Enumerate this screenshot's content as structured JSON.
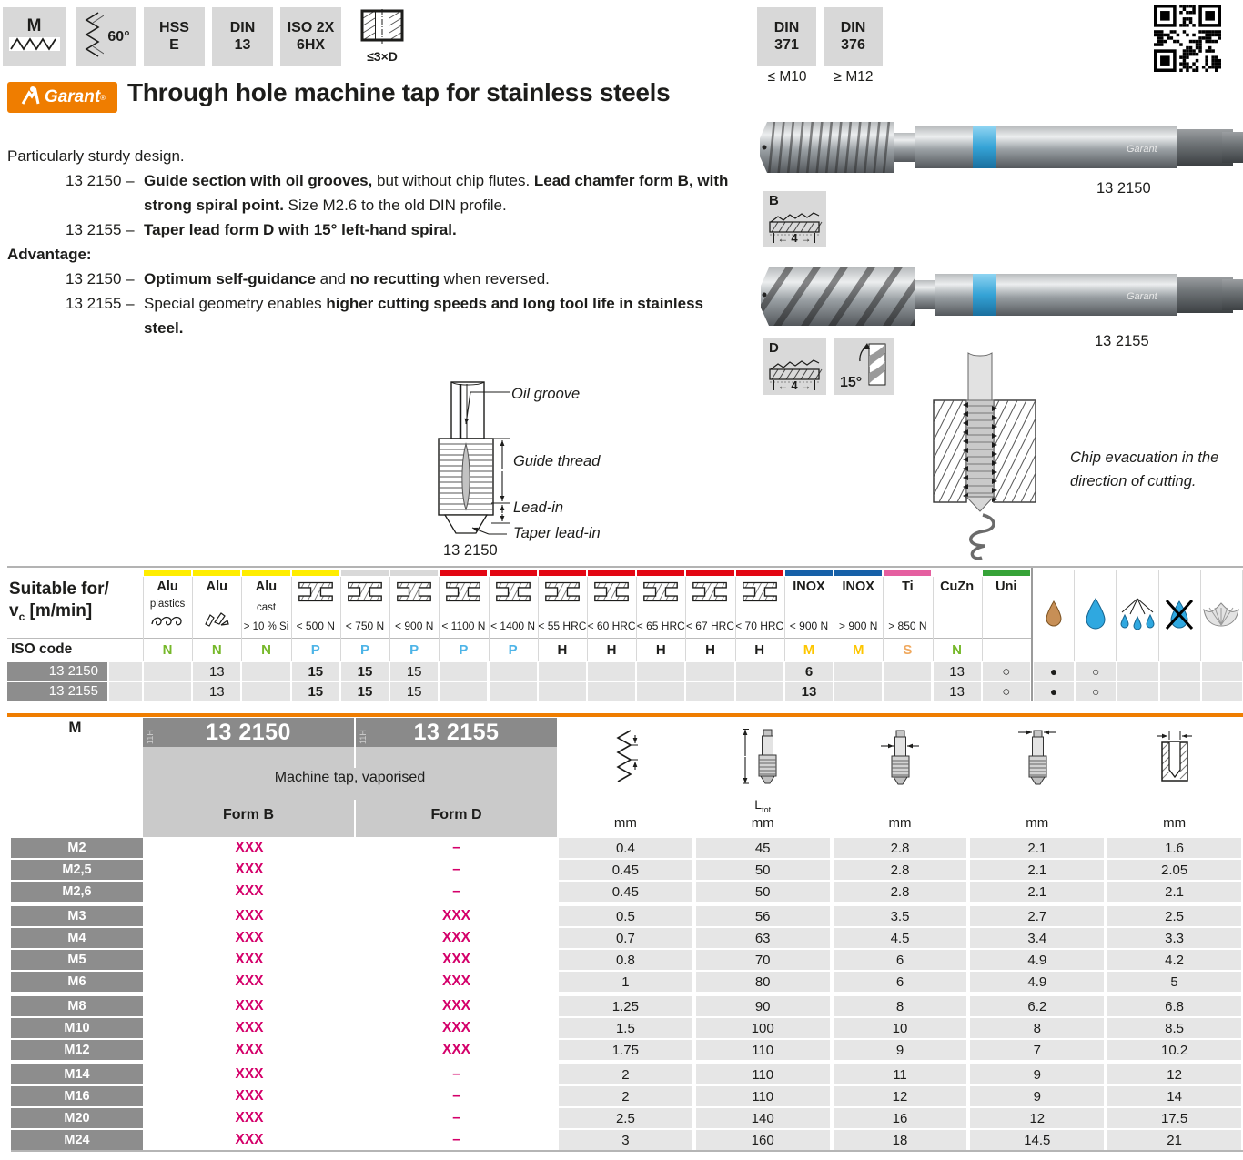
{
  "colors": {
    "accent_orange": "#ef7d00",
    "magenta": "#d4006a",
    "ring_blue": "#35a3d6"
  },
  "badge_strip": [
    {
      "icon": "thread-profile-m",
      "label": "M"
    },
    {
      "icon": "flank-angle",
      "label": "60°"
    },
    {
      "icon": "text",
      "lines": [
        "HSS",
        "E"
      ]
    },
    {
      "icon": "text",
      "lines": [
        "DIN",
        "13"
      ]
    },
    {
      "icon": "text",
      "lines": [
        "ISO 2X",
        "6HX"
      ]
    },
    {
      "icon": "through-hole",
      "label": "≤3×D"
    }
  ],
  "din_badges": [
    {
      "lines": [
        "DIN",
        "371"
      ],
      "range": "≤ M10"
    },
    {
      "lines": [
        "DIN",
        "376"
      ],
      "range": "≥ M12"
    }
  ],
  "brand": {
    "name": "Garant",
    "reg": "®"
  },
  "page_title": "Through hole machine tap for stainless steels",
  "intro": "Particularly sturdy design.",
  "features": [
    {
      "code": "13 2150 –",
      "segments": [
        [
          1,
          "Guide section with oil grooves,"
        ],
        [
          0,
          " but without chip flutes. "
        ],
        [
          1,
          "Lead chamfer form B, with strong spiral point."
        ],
        [
          0,
          " Size M2.6 to the old DIN profile."
        ]
      ]
    },
    {
      "code": "13 2155 –",
      "segments": [
        [
          1,
          "Taper lead form D with 15° left-hand spiral."
        ]
      ]
    }
  ],
  "advantage_heading": "Advantage:",
  "advantages": [
    {
      "code": "13 2150 –",
      "segments": [
        [
          1,
          "Optimum self-guidance"
        ],
        [
          0,
          " and "
        ],
        [
          1,
          "no recutting"
        ],
        [
          0,
          " when reversed."
        ]
      ]
    },
    {
      "code": "13 2155 –",
      "segments": [
        [
          0,
          "Special geometry enables "
        ],
        [
          1,
          "higher cutting speeds and long tool life in stainless steel."
        ]
      ]
    }
  ],
  "products": [
    {
      "label": "13 2150",
      "chamfer_form": "B",
      "chamfer_length": "4"
    },
    {
      "label": "13 2155",
      "chamfer_form": "D",
      "chamfer_length": "4",
      "spiral_angle": "15°"
    }
  ],
  "drawing": {
    "labels": [
      "Oil groove",
      "Guide thread",
      "Lead-in",
      "Taper lead-in"
    ],
    "caption": "13 2150"
  },
  "chip_note": [
    "Chip evacuation in the",
    "direction of cutting."
  ],
  "suitability": {
    "corner": {
      "line1": "Suitable for/",
      "symbol": "v",
      "symbol_sub": "c",
      "unit": " [m/min]"
    },
    "iso_label": "ISO code",
    "row_labels": [
      "13 2150",
      "13 2155"
    ],
    "columns": [
      {
        "strip": "#ffed00",
        "iso": "N",
        "iso_color": "#76b82a",
        "icon": "swirl",
        "t1": "Alu",
        "t2": "plastics",
        "values": [
          "",
          ""
        ]
      },
      {
        "strip": "#ffed00",
        "iso": "N",
        "iso_color": "#76b82a",
        "icon": "chips",
        "t1": "Alu",
        "values": [
          "13",
          "13"
        ]
      },
      {
        "strip": "#ffed00",
        "iso": "N",
        "iso_color": "#76b82a",
        "t1": "Alu",
        "t2": "cast",
        "t3": "> 10 % Si",
        "values": [
          "",
          ""
        ]
      },
      {
        "strip": "#ffed00",
        "iso": "P",
        "iso_color": "#4db4e7",
        "icon": "ibeam",
        "t2": "< 500 N",
        "values": [
          "15",
          "15"
        ],
        "bold": [
          true,
          true
        ]
      },
      {
        "strip": "#d9d9d9",
        "iso": "P",
        "iso_color": "#4db4e7",
        "icon": "ibeam",
        "t2": "< 750 N",
        "values": [
          "15",
          "15"
        ],
        "bold": [
          true,
          true
        ]
      },
      {
        "strip": "#d9d9d9",
        "iso": "P",
        "iso_color": "#4db4e7",
        "icon": "ibeam",
        "t2": "< 900 N",
        "values": [
          "15",
          "15"
        ]
      },
      {
        "strip": "#e30613",
        "iso": "P",
        "iso_color": "#4db4e7",
        "icon": "ibeam",
        "t2": "< 1100 N",
        "values": [
          "",
          ""
        ]
      },
      {
        "strip": "#e30613",
        "iso": "P",
        "iso_color": "#4db4e7",
        "icon": "ibeam",
        "t2": "< 1400 N",
        "values": [
          "",
          ""
        ]
      },
      {
        "strip": "#e30613",
        "iso": "H",
        "iso_color": "#1d1d1b",
        "icon": "ibeam",
        "t2": "< 55 HRC",
        "values": [
          "",
          ""
        ]
      },
      {
        "strip": "#e30613",
        "iso": "H",
        "iso_color": "#1d1d1b",
        "icon": "ibeam",
        "t2": "< 60 HRC",
        "values": [
          "",
          ""
        ]
      },
      {
        "strip": "#e30613",
        "iso": "H",
        "iso_color": "#1d1d1b",
        "icon": "ibeam",
        "t2": "< 65 HRC",
        "values": [
          "",
          ""
        ]
      },
      {
        "strip": "#e30613",
        "iso": "H",
        "iso_color": "#1d1d1b",
        "icon": "ibeam",
        "t2": "< 67 HRC",
        "values": [
          "",
          ""
        ]
      },
      {
        "strip": "#e30613",
        "iso": "H",
        "iso_color": "#1d1d1b",
        "icon": "ibeam",
        "t2": "< 70 HRC",
        "values": [
          "",
          ""
        ]
      },
      {
        "strip": "#1660a8",
        "iso": "M",
        "iso_color": "#fdc600",
        "t1": "INOX",
        "t2": "< 900 N",
        "values": [
          "6",
          "13"
        ],
        "bold": [
          true,
          true
        ]
      },
      {
        "strip": "#1660a8",
        "iso": "M",
        "iso_color": "#fdc600",
        "t1": "INOX",
        "t2": "> 900 N",
        "values": [
          "",
          ""
        ]
      },
      {
        "strip": "#e55fa0",
        "iso": "S",
        "iso_color": "#f0a95f",
        "t1": "Ti",
        "t2": "> 850 N",
        "values": [
          "",
          ""
        ]
      },
      {
        "strip": "",
        "iso": "N",
        "iso_color": "#76b82a",
        "t1": "CuZn",
        "values": [
          "13",
          "13"
        ]
      },
      {
        "strip": "#36a338",
        "iso": "",
        "iso_color": "",
        "t1": "Uni",
        "values": [
          "○",
          "○"
        ]
      }
    ],
    "coolant_columns": [
      {
        "icon": "oil-drop",
        "values": [
          "●",
          "●"
        ]
      },
      {
        "icon": "emulsion-drop",
        "values": [
          "○",
          "○"
        ]
      },
      {
        "icon": "mql-spray",
        "values": [
          "",
          ""
        ]
      },
      {
        "icon": "no-coolant",
        "values": [
          "",
          ""
        ]
      },
      {
        "icon": "air-blast",
        "values": [
          "",
          ""
        ]
      }
    ]
  },
  "dimensions": {
    "thread_series": "M",
    "articles": [
      {
        "side_mark": "11H",
        "number": "13 2150",
        "form": "Form B"
      },
      {
        "side_mark": "11H",
        "number": "13 2155",
        "form": "Form D"
      }
    ],
    "subtitle": "Machine tap, vaporised",
    "value_columns": [
      {
        "icon": "pitch",
        "unit": "mm"
      },
      {
        "icon": "total-length",
        "dim": "L",
        "dim_sub": "tot",
        "unit": "mm"
      },
      {
        "icon": "shank-diameter",
        "unit": "mm"
      },
      {
        "icon": "square-drive",
        "unit": "mm"
      },
      {
        "icon": "core-hole",
        "unit": "mm"
      }
    ],
    "rows": [
      {
        "size": "M2",
        "form_b": "XXX",
        "form_d": "–",
        "values": [
          "0.4",
          "45",
          "2.8",
          "2.1",
          "1.6"
        ]
      },
      {
        "size": "M2,5",
        "form_b": "XXX",
        "form_d": "–",
        "values": [
          "0.45",
          "50",
          "2.8",
          "2.1",
          "2.05"
        ]
      },
      {
        "size": "M2,6",
        "form_b": "XXX",
        "form_d": "–",
        "values": [
          "0.45",
          "50",
          "2.8",
          "2.1",
          "2.1"
        ]
      },
      {
        "size": "M3",
        "form_b": "XXX",
        "form_d": "XXX",
        "values": [
          "0.5",
          "56",
          "3.5",
          "2.7",
          "2.5"
        ]
      },
      {
        "size": "M4",
        "form_b": "XXX",
        "form_d": "XXX",
        "values": [
          "0.7",
          "63",
          "4.5",
          "3.4",
          "3.3"
        ]
      },
      {
        "size": "M5",
        "form_b": "XXX",
        "form_d": "XXX",
        "values": [
          "0.8",
          "70",
          "6",
          "4.9",
          "4.2"
        ]
      },
      {
        "size": "M6",
        "form_b": "XXX",
        "form_d": "XXX",
        "values": [
          "1",
          "80",
          "6",
          "4.9",
          "5"
        ]
      },
      {
        "size": "M8",
        "form_b": "XXX",
        "form_d": "XXX",
        "values": [
          "1.25",
          "90",
          "8",
          "6.2",
          "6.8"
        ]
      },
      {
        "size": "M10",
        "form_b": "XXX",
        "form_d": "XXX",
        "values": [
          "1.5",
          "100",
          "10",
          "8",
          "8.5"
        ]
      },
      {
        "size": "M12",
        "form_b": "XXX",
        "form_d": "XXX",
        "values": [
          "1.75",
          "110",
          "9",
          "7",
          "10.2"
        ]
      },
      {
        "size": "M14",
        "form_b": "XXX",
        "form_d": "–",
        "values": [
          "2",
          "110",
          "11",
          "9",
          "12"
        ]
      },
      {
        "size": "M16",
        "form_b": "XXX",
        "form_d": "–",
        "values": [
          "2",
          "110",
          "12",
          "9",
          "14"
        ]
      },
      {
        "size": "M20",
        "form_b": "XXX",
        "form_d": "–",
        "values": [
          "2.5",
          "140",
          "16",
          "12",
          "17.5"
        ]
      },
      {
        "size": "M24",
        "form_b": "XXX",
        "form_d": "–",
        "values": [
          "3",
          "160",
          "18",
          "14.5",
          "21"
        ]
      }
    ]
  }
}
